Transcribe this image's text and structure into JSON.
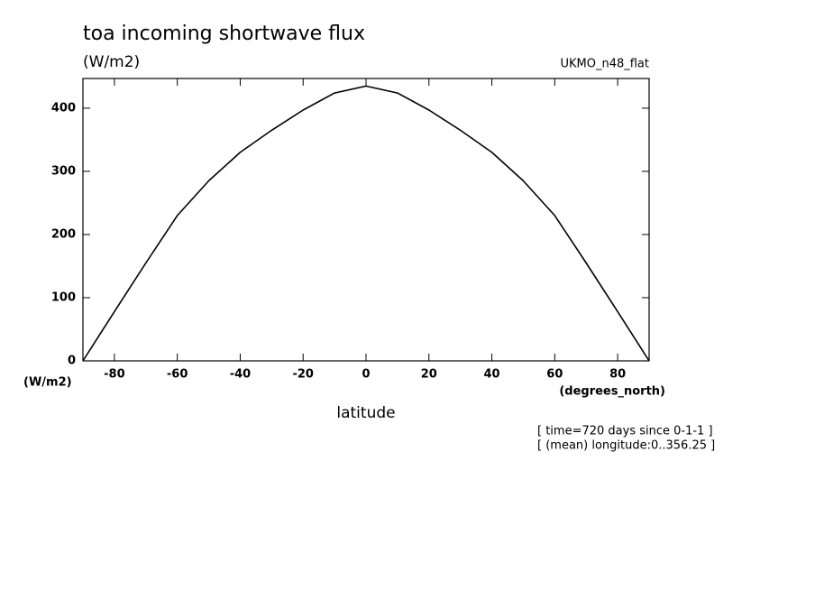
{
  "chart_data": {
    "type": "line",
    "title": "toa incoming shortwave flux",
    "units_label": "(W/m2)",
    "dataset": "UKMO_n48_flat",
    "y_axis_unit": "(W/m2)",
    "x_axis_unit": "(degrees_north)",
    "x_label": "latitude",
    "annotations": [
      "[ time=720 days since 0-1-1 ]",
      "[ (mean) longitude:0..356.25 ]"
    ],
    "x": [
      -90,
      -80,
      -70,
      -60,
      -50,
      -40,
      -30,
      -20,
      -10,
      0,
      10,
      20,
      30,
      40,
      50,
      60,
      70,
      80,
      90
    ],
    "series": [
      {
        "color": "#000000",
        "values": [
          0,
          78,
          155,
          230,
          285,
          330,
          365,
          397,
          424,
          435,
          424,
          397,
          365,
          330,
          285,
          230,
          155,
          78,
          0
        ]
      }
    ],
    "xlim": [
      -90,
      90
    ],
    "xticks": [
      -80,
      -60,
      -40,
      -20,
      0,
      20,
      40,
      60,
      80
    ],
    "ylim": [
      0,
      447
    ],
    "yticks": [
      0,
      100,
      200,
      300,
      400
    ],
    "grid": false
  }
}
